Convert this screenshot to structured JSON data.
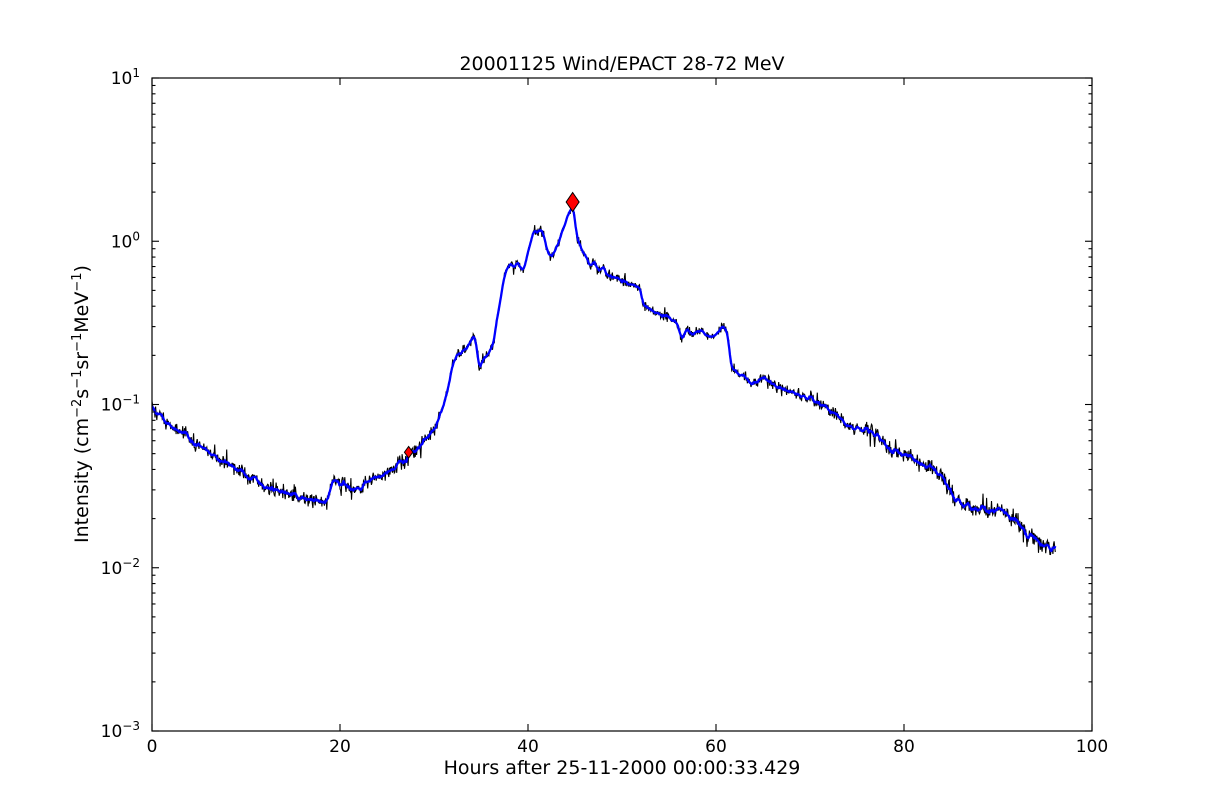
{
  "chart_data": {
    "type": "line",
    "title": "20001125 Wind/EPACT 28-72 MeV",
    "xlabel": "Hours after 25-11-2000 00:00:33.429",
    "ylabel": "Intensity (cm⁻²s⁻¹sr⁻¹MeV⁻¹)",
    "ylabel_parts": [
      [
        "Intensity (cm",
        "−2"
      ],
      [
        "s",
        "−1"
      ],
      [
        "sr",
        "−1"
      ],
      [
        "MeV",
        "−1"
      ],
      [
        ")",
        ""
      ]
    ],
    "xlim": [
      0,
      100
    ],
    "ylim_log10": [
      -3,
      1
    ],
    "x_ticks": [
      0,
      20,
      40,
      60,
      80,
      100
    ],
    "y_tick_base": "10",
    "y_tick_exponents": [
      1,
      0,
      -1,
      -2,
      -3
    ],
    "grid": false,
    "legend": null,
    "x_end": 96.1,
    "series": [
      {
        "name": "raw-intensity",
        "color": "#000000",
        "style": "noisy-thin"
      },
      {
        "name": "smoothed-intensity",
        "color": "#0000ff",
        "style": "smooth-thick"
      }
    ],
    "markers": [
      {
        "name": "onset-marker",
        "x": 27.3,
        "y": 0.051,
        "shape": "thin-diamond",
        "size": "small",
        "fill": "#ff0000",
        "edge": "#000000"
      },
      {
        "name": "peak-marker",
        "x": 44.75,
        "y": 1.74,
        "shape": "thin-diamond",
        "size": "large",
        "fill": "#ff0000",
        "edge": "#000000"
      }
    ],
    "noise": {
      "seed": 20001125,
      "tail_chance": 0.08,
      "tail_boost": 1.8
    },
    "curve_points": [
      [
        0,
        0.1
      ],
      [
        0.5,
        0.091
      ],
      [
        1,
        0.084
      ],
      [
        1.5,
        0.079
      ],
      [
        2,
        0.075
      ],
      [
        2.5,
        0.071
      ],
      [
        3,
        0.068
      ],
      [
        3.5,
        0.065
      ],
      [
        4,
        0.062
      ],
      [
        4.5,
        0.059
      ],
      [
        5,
        0.057
      ],
      [
        5.5,
        0.054
      ],
      [
        6,
        0.051
      ],
      [
        6.5,
        0.049
      ],
      [
        7,
        0.047
      ],
      [
        7.5,
        0.045
      ],
      [
        8,
        0.0435
      ],
      [
        8.5,
        0.0415
      ],
      [
        9,
        0.04
      ],
      [
        9.5,
        0.0385
      ],
      [
        10,
        0.037
      ],
      [
        10.5,
        0.0355
      ],
      [
        11,
        0.0345
      ],
      [
        11.5,
        0.033
      ],
      [
        12,
        0.032
      ],
      [
        12.5,
        0.031
      ],
      [
        13,
        0.03
      ],
      [
        13.5,
        0.0295
      ],
      [
        14,
        0.029
      ],
      [
        14.5,
        0.0282
      ],
      [
        15,
        0.0276
      ],
      [
        15.5,
        0.0272
      ],
      [
        16,
        0.027
      ],
      [
        16.4,
        0.0263
      ],
      [
        16.8,
        0.027
      ],
      [
        17.2,
        0.0262
      ],
      [
        17.6,
        0.0258
      ],
      [
        18,
        0.0248
      ],
      [
        18.3,
        0.024
      ],
      [
        18.6,
        0.0262
      ],
      [
        18.9,
        0.03
      ],
      [
        19.2,
        0.034
      ],
      [
        19.5,
        0.0338
      ],
      [
        19.9,
        0.033
      ],
      [
        20.3,
        0.0322
      ],
      [
        20.7,
        0.0312
      ],
      [
        21.1,
        0.0306
      ],
      [
        21.5,
        0.0305
      ],
      [
        22,
        0.031
      ],
      [
        22.5,
        0.0318
      ],
      [
        23,
        0.033
      ],
      [
        23.5,
        0.0342
      ],
      [
        24,
        0.0358
      ],
      [
        24.5,
        0.0372
      ],
      [
        25,
        0.0388
      ],
      [
        25.5,
        0.0404
      ],
      [
        26,
        0.0422
      ],
      [
        26.5,
        0.0441
      ],
      [
        27,
        0.046
      ],
      [
        27.3,
        0.049
      ],
      [
        27.7,
        0.0512
      ],
      [
        28,
        0.053
      ],
      [
        28.5,
        0.056
      ],
      [
        29,
        0.06
      ],
      [
        29.5,
        0.0646
      ],
      [
        30,
        0.07
      ],
      [
        30.4,
        0.076
      ],
      [
        30.8,
        0.088
      ],
      [
        31.2,
        0.105
      ],
      [
        31.6,
        0.135
      ],
      [
        32,
        0.175
      ],
      [
        32.4,
        0.2
      ],
      [
        32.8,
        0.21
      ],
      [
        33.2,
        0.218
      ],
      [
        33.6,
        0.23
      ],
      [
        34,
        0.248
      ],
      [
        34.3,
        0.26
      ],
      [
        34.6,
        0.21
      ],
      [
        34.9,
        0.16
      ],
      [
        35.2,
        0.175
      ],
      [
        35.6,
        0.2
      ],
      [
        36,
        0.215
      ],
      [
        36.3,
        0.23
      ],
      [
        36.6,
        0.3
      ],
      [
        37,
        0.42
      ],
      [
        37.4,
        0.58
      ],
      [
        37.8,
        0.7
      ],
      [
        38.2,
        0.74
      ],
      [
        38.5,
        0.68
      ],
      [
        38.8,
        0.76
      ],
      [
        39.1,
        0.7
      ],
      [
        39.5,
        0.68
      ],
      [
        39.9,
        0.8
      ],
      [
        40.3,
        1.0
      ],
      [
        40.7,
        1.21
      ],
      [
        41,
        1.1
      ],
      [
        41.3,
        1.22
      ],
      [
        41.7,
        1.08
      ],
      [
        42.1,
        0.88
      ],
      [
        42.4,
        0.8
      ],
      [
        42.7,
        0.82
      ],
      [
        43.1,
        0.95
      ],
      [
        43.5,
        1.1
      ],
      [
        43.9,
        1.28
      ],
      [
        44.3,
        1.45
      ],
      [
        44.6,
        1.58
      ],
      [
        44.8,
        1.65
      ],
      [
        45,
        1.35
      ],
      [
        45.2,
        1.04
      ],
      [
        45.5,
        0.95
      ],
      [
        45.9,
        0.86
      ],
      [
        46.3,
        0.76
      ],
      [
        46.7,
        0.7
      ],
      [
        47.1,
        0.74
      ],
      [
        47.5,
        0.66
      ],
      [
        47.9,
        0.7
      ],
      [
        48.3,
        0.63
      ],
      [
        48.8,
        0.61
      ],
      [
        49.4,
        0.59
      ],
      [
        50,
        0.57
      ],
      [
        50.6,
        0.55
      ],
      [
        51.2,
        0.535
      ],
      [
        51.9,
        0.52
      ],
      [
        52.1,
        0.46
      ],
      [
        52.4,
        0.405
      ],
      [
        53,
        0.385
      ],
      [
        53.6,
        0.37
      ],
      [
        54.4,
        0.35
      ],
      [
        55.2,
        0.33
      ],
      [
        55.8,
        0.32
      ],
      [
        56.2,
        0.275
      ],
      [
        56.5,
        0.26
      ],
      [
        57,
        0.29
      ],
      [
        57.4,
        0.265
      ],
      [
        58,
        0.275
      ],
      [
        58.6,
        0.28
      ],
      [
        59.2,
        0.26
      ],
      [
        59.8,
        0.27
      ],
      [
        60.3,
        0.28
      ],
      [
        60.8,
        0.295
      ],
      [
        61.2,
        0.29
      ],
      [
        61.45,
        0.2
      ],
      [
        61.7,
        0.164
      ],
      [
        62.3,
        0.156
      ],
      [
        62.9,
        0.15
      ],
      [
        63.5,
        0.14
      ],
      [
        63.9,
        0.133
      ],
      [
        64.4,
        0.138
      ],
      [
        65,
        0.145
      ],
      [
        65.5,
        0.14
      ],
      [
        65.9,
        0.136
      ],
      [
        66.5,
        0.128
      ],
      [
        67.1,
        0.124
      ],
      [
        67.7,
        0.12
      ],
      [
        68.4,
        0.116
      ],
      [
        69.1,
        0.113
      ],
      [
        69.8,
        0.11
      ],
      [
        70.5,
        0.106
      ],
      [
        71.2,
        0.101
      ],
      [
        71.9,
        0.096
      ],
      [
        72.8,
        0.086
      ],
      [
        73.5,
        0.08
      ],
      [
        74.2,
        0.073
      ],
      [
        75,
        0.071
      ],
      [
        75.7,
        0.07
      ],
      [
        76.4,
        0.068
      ],
      [
        77,
        0.064
      ],
      [
        77.6,
        0.061
      ],
      [
        78.1,
        0.055
      ],
      [
        78.8,
        0.051
      ],
      [
        79.9,
        0.049
      ],
      [
        81,
        0.046
      ],
      [
        82,
        0.043
      ],
      [
        83.1,
        0.04
      ],
      [
        84.1,
        0.036
      ],
      [
        84.8,
        0.03
      ],
      [
        85.5,
        0.0265
      ],
      [
        86.2,
        0.0245
      ],
      [
        87.5,
        0.0225
      ],
      [
        88.3,
        0.0235
      ],
      [
        89,
        0.023
      ],
      [
        90,
        0.0232
      ],
      [
        90.8,
        0.0222
      ],
      [
        91.3,
        0.0205
      ],
      [
        92,
        0.0196
      ],
      [
        92.8,
        0.0168
      ],
      [
        93.6,
        0.0155
      ],
      [
        94.5,
        0.014
      ],
      [
        95.3,
        0.0133
      ],
      [
        96.1,
        0.0127
      ]
    ]
  }
}
